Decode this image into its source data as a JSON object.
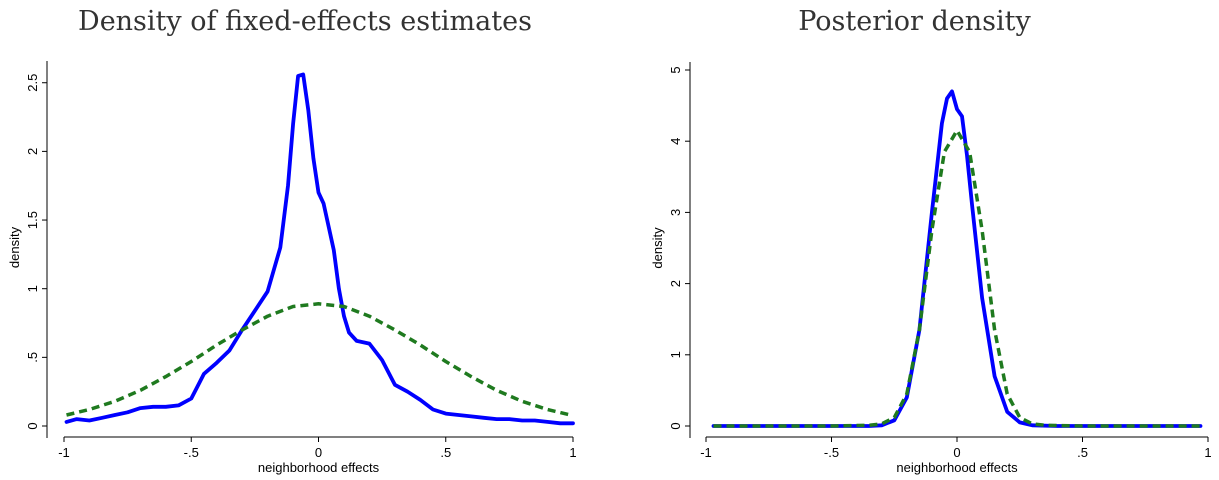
{
  "chart_data": [
    {
      "type": "line",
      "title": "Density of fixed-effects estimates",
      "xlabel": "neighborhood effects",
      "ylabel": "density",
      "xlim": [
        -1,
        1
      ],
      "ylim": [
        0,
        2.6
      ],
      "xticks": [
        -1,
        -0.5,
        0,
        0.5,
        1
      ],
      "xtick_labels": [
        "-1",
        "-.5",
        "0",
        ".5",
        "1"
      ],
      "yticks": [
        0,
        0.5,
        1,
        1.5,
        2,
        2.5
      ],
      "ytick_labels": [
        "0",
        ".5",
        "1",
        "1.5",
        "2",
        "2.5"
      ],
      "grid": false,
      "series": [
        {
          "style": "solid",
          "color": "#0000ff",
          "x": [
            -0.99,
            -0.95,
            -0.9,
            -0.85,
            -0.8,
            -0.75,
            -0.7,
            -0.65,
            -0.6,
            -0.55,
            -0.5,
            -0.45,
            -0.4,
            -0.35,
            -0.3,
            -0.25,
            -0.2,
            -0.15,
            -0.12,
            -0.1,
            -0.08,
            -0.06,
            -0.04,
            -0.02,
            0,
            0.02,
            0.04,
            0.06,
            0.08,
            0.1,
            0.12,
            0.15,
            0.2,
            0.25,
            0.3,
            0.35,
            0.4,
            0.45,
            0.5,
            0.55,
            0.6,
            0.65,
            0.7,
            0.75,
            0.8,
            0.85,
            0.9,
            0.95,
            1.0
          ],
          "y": [
            0.03,
            0.05,
            0.04,
            0.06,
            0.08,
            0.1,
            0.13,
            0.14,
            0.14,
            0.15,
            0.2,
            0.38,
            0.46,
            0.55,
            0.7,
            0.84,
            0.98,
            1.3,
            1.75,
            2.2,
            2.55,
            2.56,
            2.3,
            1.95,
            1.7,
            1.62,
            1.45,
            1.28,
            1.0,
            0.8,
            0.68,
            0.62,
            0.6,
            0.48,
            0.3,
            0.25,
            0.19,
            0.12,
            0.09,
            0.08,
            0.07,
            0.06,
            0.05,
            0.05,
            0.04,
            0.04,
            0.03,
            0.02,
            0.02
          ]
        },
        {
          "style": "dashed",
          "color": "#1f7a1f",
          "x": [
            -0.99,
            -0.9,
            -0.8,
            -0.7,
            -0.6,
            -0.5,
            -0.4,
            -0.3,
            -0.2,
            -0.1,
            0,
            0.1,
            0.2,
            0.3,
            0.4,
            0.5,
            0.6,
            0.7,
            0.8,
            0.9,
            0.99
          ],
          "y": [
            0.08,
            0.12,
            0.18,
            0.26,
            0.36,
            0.47,
            0.59,
            0.7,
            0.8,
            0.87,
            0.89,
            0.87,
            0.8,
            0.7,
            0.59,
            0.47,
            0.36,
            0.26,
            0.18,
            0.12,
            0.08
          ]
        }
      ]
    },
    {
      "type": "line",
      "title": "Posterior density",
      "xlabel": "neighborhood effects",
      "ylabel": "density",
      "xlim": [
        -1,
        1
      ],
      "ylim": [
        0,
        5
      ],
      "xticks": [
        -1,
        -0.5,
        0,
        0.5,
        1
      ],
      "xtick_labels": [
        "-1",
        "-.5",
        "0",
        ".5",
        "1"
      ],
      "yticks": [
        0,
        1,
        2,
        3,
        4,
        5
      ],
      "ytick_labels": [
        "0",
        "1",
        "2",
        "3",
        "4",
        "5"
      ],
      "grid": false,
      "series": [
        {
          "style": "solid",
          "color": "#0000ff",
          "x": [
            -0.97,
            -0.5,
            -0.35,
            -0.3,
            -0.25,
            -0.2,
            -0.15,
            -0.1,
            -0.06,
            -0.04,
            -0.02,
            0,
            0.02,
            0.04,
            0.06,
            0.1,
            0.15,
            0.2,
            0.25,
            0.3,
            0.4,
            0.97
          ],
          "y": [
            0,
            0,
            0,
            0.01,
            0.08,
            0.4,
            1.35,
            3.0,
            4.25,
            4.6,
            4.7,
            4.45,
            4.35,
            3.8,
            3.1,
            1.8,
            0.7,
            0.2,
            0.05,
            0.01,
            0,
            0
          ]
        },
        {
          "style": "dashed",
          "color": "#1f7a1f",
          "x": [
            -0.97,
            -0.5,
            -0.35,
            -0.3,
            -0.25,
            -0.2,
            -0.15,
            -0.1,
            -0.05,
            0,
            0.05,
            0.1,
            0.15,
            0.2,
            0.25,
            0.3,
            0.35,
            0.5,
            0.97
          ],
          "y": [
            0,
            0,
            0.01,
            0.03,
            0.12,
            0.45,
            1.35,
            2.75,
            3.85,
            4.15,
            3.85,
            2.75,
            1.35,
            0.45,
            0.12,
            0.03,
            0.01,
            0,
            0
          ]
        }
      ]
    }
  ]
}
